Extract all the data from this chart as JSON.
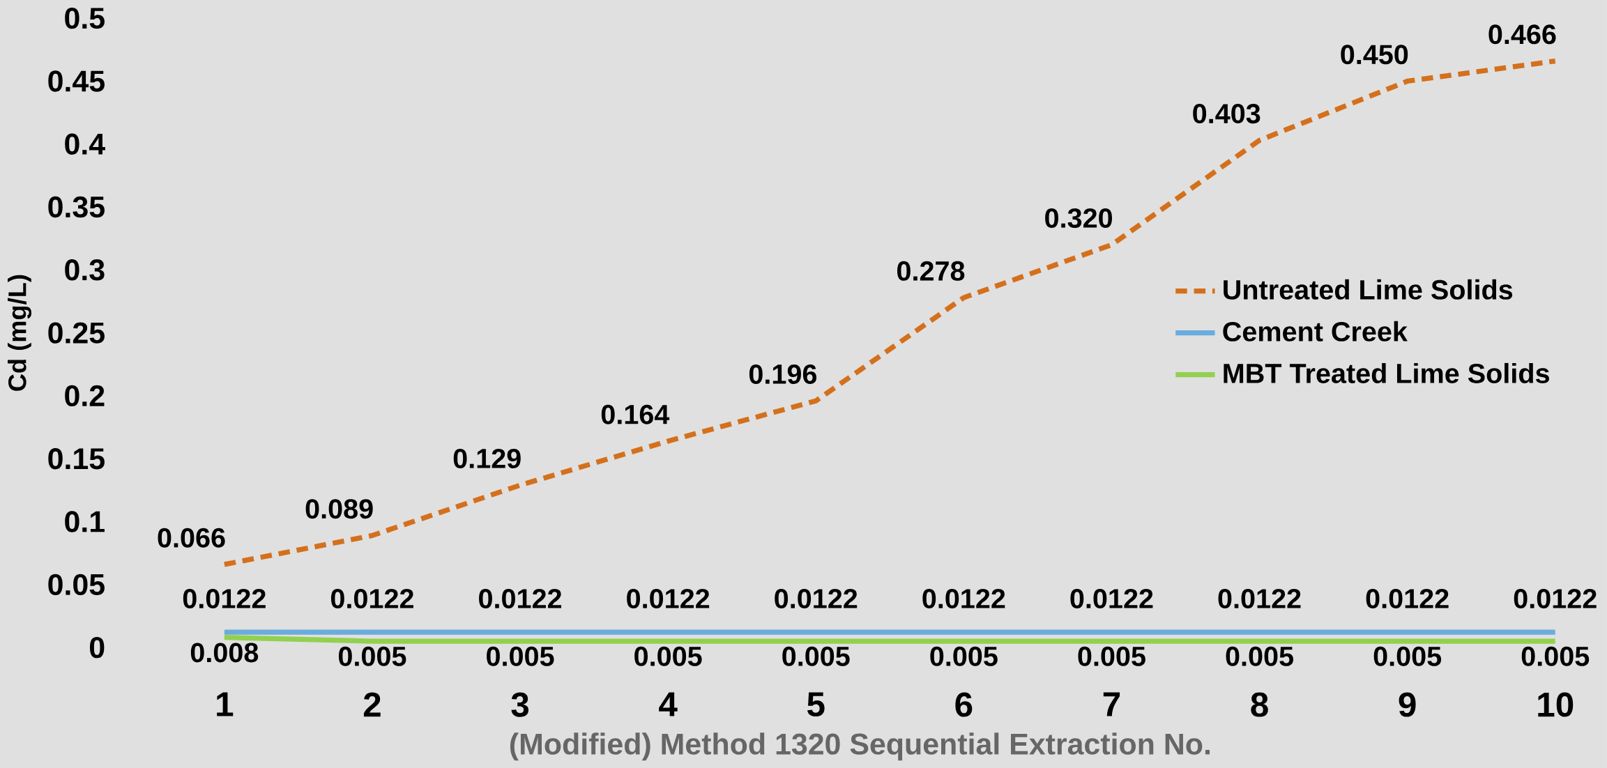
{
  "chart_data": {
    "type": "line",
    "xlabel": "(Modified) Method 1320 Sequential Extraction No.",
    "ylabel": "Cd (mg/L)",
    "categories": [
      "1",
      "2",
      "3",
      "4",
      "5",
      "6",
      "7",
      "8",
      "9",
      "10"
    ],
    "ylim": [
      0,
      0.5
    ],
    "yticks": [
      0,
      0.05,
      0.1,
      0.15,
      0.2,
      0.25,
      0.3,
      0.35,
      0.4,
      0.45,
      0.5
    ],
    "grid": false,
    "legend": "right",
    "series": [
      {
        "name": "Untreated Lime Solids",
        "color": "#d4701c",
        "line_style": "dashed",
        "values": [
          0.066,
          0.089,
          0.129,
          0.164,
          0.196,
          0.278,
          0.32,
          0.403,
          0.45,
          0.466
        ],
        "value_labels": [
          "0.066",
          "0.089",
          "0.129",
          "0.164",
          "0.196",
          "0.278",
          "0.320",
          "0.403",
          "0.450",
          "0.466"
        ]
      },
      {
        "name": "Cement Creek",
        "color": "#6aacde",
        "line_style": "solid",
        "values": [
          0.0122,
          0.0122,
          0.0122,
          0.0122,
          0.0122,
          0.0122,
          0.0122,
          0.0122,
          0.0122,
          0.0122
        ],
        "value_labels": [
          "0.0122",
          "0.0122",
          "0.0122",
          "0.0122",
          "0.0122",
          "0.0122",
          "0.0122",
          "0.0122",
          "0.0122",
          "0.0122"
        ]
      },
      {
        "name": "MBT Treated Lime Solids",
        "color": "#92d050",
        "line_style": "solid",
        "values": [
          0.008,
          0.005,
          0.005,
          0.005,
          0.005,
          0.005,
          0.005,
          0.005,
          0.005,
          0.005
        ],
        "value_labels": [
          "0.008",
          "0.005",
          "0.005",
          "0.005",
          "0.005",
          "0.005",
          "0.005",
          "0.005",
          "0.005",
          "0.005"
        ]
      }
    ]
  }
}
